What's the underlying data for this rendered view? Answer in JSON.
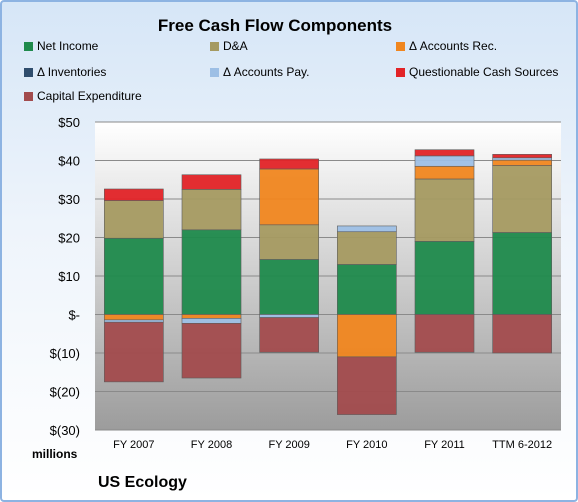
{
  "chart_data": {
    "type": "bar",
    "stacked": true,
    "title": "Free Cash Flow Components",
    "units_label": "millions",
    "company": "US Ecology",
    "categories": [
      "FY 2007",
      "FY 2008",
      "FY 2009",
      "FY 2010",
      "FY 2011",
      "TTM 6-2012"
    ],
    "ylim": [
      -30,
      50
    ],
    "yticks": [
      {
        "value": 50,
        "label": "$50"
      },
      {
        "value": 40,
        "label": "$40"
      },
      {
        "value": 30,
        "label": "$30"
      },
      {
        "value": 20,
        "label": "$20"
      },
      {
        "value": 10,
        "label": "$10"
      },
      {
        "value": 0,
        "label": "$-"
      },
      {
        "value": -10,
        "label": "$(10)"
      },
      {
        "value": -20,
        "label": "$(20)"
      },
      {
        "value": -30,
        "label": "$(30)"
      }
    ],
    "grid": true,
    "legend_position": "top",
    "series": [
      {
        "name": "Net Income",
        "color": "#1f8a4c",
        "values": [
          19.8,
          22.0,
          14.3,
          13.0,
          19.0,
          21.3
        ]
      },
      {
        "name": "D&A",
        "color": "#a59a61",
        "values": [
          9.8,
          10.5,
          9.0,
          8.5,
          16.2,
          17.4
        ]
      },
      {
        "name": "Δ Accounts Rec.",
        "color": "#f0861f",
        "values": [
          -1.4,
          -1.0,
          14.5,
          -11.0,
          3.3,
          1.4
        ]
      },
      {
        "name": "Δ Inventories",
        "color": "#2f4d6d",
        "values": [
          0,
          0,
          0,
          0,
          0,
          0
        ]
      },
      {
        "name": "Δ Accounts Pay.",
        "color": "#9dbfe5",
        "values": [
          -0.6,
          -1.3,
          -0.8,
          1.5,
          2.7,
          0.6
        ]
      },
      {
        "name": "Questionable Cash Sources",
        "color": "#e22327",
        "values": [
          3.0,
          3.8,
          2.6,
          0,
          1.6,
          0.9
        ]
      },
      {
        "name": "Capital Expenditure",
        "color": "#a24b4d",
        "values": [
          -15.5,
          -14.2,
          -9.0,
          -15.0,
          -9.8,
          -10.0
        ]
      }
    ]
  }
}
